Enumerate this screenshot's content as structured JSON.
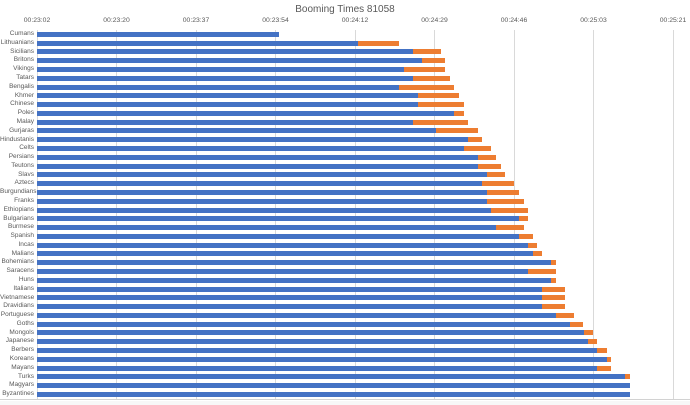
{
  "colors": {
    "bar_blue": "#4472C4",
    "bar_orange": "#ED7D31",
    "grid": "#D9D9D9",
    "text": "#595959",
    "edge": "#d2d2d2"
  },
  "chart_data": {
    "type": "bar",
    "orientation": "horizontal",
    "stacked": true,
    "grid": true,
    "legend": "none",
    "title": "Booming Times 81058",
    "xlabel": "",
    "ylabel": "",
    "x_axis": {
      "format": "h:mm:ss",
      "min_seconds": 1382.4,
      "max_seconds": 1520.64,
      "tick_seconds": [
        1382.4,
        1399.68,
        1416.96,
        1434.24,
        1451.52,
        1468.8,
        1486.08,
        1503.36,
        1520.64
      ],
      "tick_labels": [
        "00:23:02",
        "00:23:20",
        "00:23:37",
        "00:23:54",
        "00:24:12",
        "00:24:29",
        "00:24:46",
        "00:25:03",
        "00:25:21"
      ]
    },
    "series_note": "Each bar = blue segment ending at end1, orange segment ending at end2 (total). No legend shown in chart.",
    "rows": [
      {
        "label": "Cumans",
        "end1_s": 1435,
        "end2_s": 1435,
        "end1": "0:23:55",
        "end2": "0:23:55"
      },
      {
        "label": "Lithuanians",
        "end1_s": 1452,
        "end2_s": 1461,
        "end1": "0:24:12",
        "end2": "0:24:21"
      },
      {
        "label": "Sicilians",
        "end1_s": 1464,
        "end2_s": 1470,
        "end1": "0:24:24",
        "end2": "0:24:30"
      },
      {
        "label": "Britons",
        "end1_s": 1466,
        "end2_s": 1471,
        "end1": "0:24:26",
        "end2": "0:24:31"
      },
      {
        "label": "Vikings",
        "end1_s": 1462,
        "end2_s": 1471,
        "end1": "0:24:22",
        "end2": "0:24:31"
      },
      {
        "label": "Tatars",
        "end1_s": 1464,
        "end2_s": 1472,
        "end1": "0:24:24",
        "end2": "0:24:32"
      },
      {
        "label": "Bengalis",
        "end1_s": 1461,
        "end2_s": 1473,
        "end1": "0:24:21",
        "end2": "0:24:33"
      },
      {
        "label": "Khmer",
        "end1_s": 1465,
        "end2_s": 1474,
        "end1": "0:24:25",
        "end2": "0:24:34"
      },
      {
        "label": "Chinese",
        "end1_s": 1465,
        "end2_s": 1475,
        "end1": "0:24:25",
        "end2": "0:24:35"
      },
      {
        "label": "Poles",
        "end1_s": 1473,
        "end2_s": 1475,
        "end1": "0:24:33",
        "end2": "0:24:35"
      },
      {
        "label": "Malay",
        "end1_s": 1464,
        "end2_s": 1476,
        "end1": "0:24:24",
        "end2": "0:24:36"
      },
      {
        "label": "Gurjaras",
        "end1_s": 1469,
        "end2_s": 1478,
        "end1": "0:24:29",
        "end2": "0:24:38"
      },
      {
        "label": "Hindustanis",
        "end1_s": 1476,
        "end2_s": 1479,
        "end1": "0:24:36",
        "end2": "0:24:39"
      },
      {
        "label": "Celts",
        "end1_s": 1475,
        "end2_s": 1481,
        "end1": "0:24:35",
        "end2": "0:24:41"
      },
      {
        "label": "Persians",
        "end1_s": 1478,
        "end2_s": 1482,
        "end1": "0:24:38",
        "end2": "0:24:42"
      },
      {
        "label": "Teutons",
        "end1_s": 1478,
        "end2_s": 1483,
        "end1": "0:24:38",
        "end2": "0:24:43"
      },
      {
        "label": "Slavs",
        "end1_s": 1480,
        "end2_s": 1484,
        "end1": "0:24:40",
        "end2": "0:24:44"
      },
      {
        "label": "Aztecs",
        "end1_s": 1479,
        "end2_s": 1486,
        "end1": "0:24:39",
        "end2": "0:24:46"
      },
      {
        "label": "Burgundians",
        "end1_s": 1480,
        "end2_s": 1487,
        "end1": "0:24:40",
        "end2": "0:24:47"
      },
      {
        "label": "Franks",
        "end1_s": 1480,
        "end2_s": 1488,
        "end1": "0:24:40",
        "end2": "0:24:48"
      },
      {
        "label": "Ethiopians",
        "end1_s": 1481,
        "end2_s": 1489,
        "end1": "0:24:41",
        "end2": "0:24:49"
      },
      {
        "label": "Bulgarians",
        "end1_s": 1487,
        "end2_s": 1489,
        "end1": "0:24:47",
        "end2": "0:24:49"
      },
      {
        "label": "Burmese",
        "end1_s": 1482,
        "end2_s": 1488,
        "end1": "0:24:42",
        "end2": "0:24:48"
      },
      {
        "label": "Spanish",
        "end1_s": 1487,
        "end2_s": 1490,
        "end1": "0:24:47",
        "end2": "0:24:50"
      },
      {
        "label": "Incas",
        "end1_s": 1489,
        "end2_s": 1491,
        "end1": "0:24:49",
        "end2": "0:24:51"
      },
      {
        "label": "Malians",
        "end1_s": 1490,
        "end2_s": 1492,
        "end1": "0:24:50",
        "end2": "0:24:52"
      },
      {
        "label": "Bohemians",
        "end1_s": 1494,
        "end2_s": 1495,
        "end1": "0:24:54",
        "end2": "0:24:55"
      },
      {
        "label": "Saracens",
        "end1_s": 1489,
        "end2_s": 1495,
        "end1": "0:24:49",
        "end2": "0:24:55"
      },
      {
        "label": "Huns",
        "end1_s": 1494,
        "end2_s": 1495,
        "end1": "0:24:54",
        "end2": "0:24:55"
      },
      {
        "label": "Italians",
        "end1_s": 1492,
        "end2_s": 1497,
        "end1": "0:24:52",
        "end2": "0:24:57"
      },
      {
        "label": "Vietnamese",
        "end1_s": 1492,
        "end2_s": 1497,
        "end1": "0:24:52",
        "end2": "0:24:57"
      },
      {
        "label": "Dravidians",
        "end1_s": 1492,
        "end2_s": 1497,
        "end1": "0:24:52",
        "end2": "0:24:57"
      },
      {
        "label": "Portuguese",
        "end1_s": 1495,
        "end2_s": 1499,
        "end1": "0:24:55",
        "end2": "0:24:59"
      },
      {
        "label": "Goths",
        "end1_s": 1498,
        "end2_s": 1501,
        "end1": "0:24:58",
        "end2": "0:25:01"
      },
      {
        "label": "Mongols",
        "end1_s": 1501,
        "end2_s": 1503,
        "end1": "0:25:01",
        "end2": "0:25:03"
      },
      {
        "label": "Japanese",
        "end1_s": 1502,
        "end2_s": 1504,
        "end1": "0:25:02",
        "end2": "0:25:04"
      },
      {
        "label": "Berbers",
        "end1_s": 1504,
        "end2_s": 1506,
        "end1": "0:25:04",
        "end2": "0:25:06"
      },
      {
        "label": "Koreans",
        "end1_s": 1506,
        "end2_s": 1507,
        "end1": "0:25:06",
        "end2": "0:25:07"
      },
      {
        "label": "Mayans",
        "end1_s": 1504,
        "end2_s": 1507,
        "end1": "0:25:04",
        "end2": "0:25:07"
      },
      {
        "label": "Turks",
        "end1_s": 1510,
        "end2_s": 1511,
        "end1": "0:25:10",
        "end2": "0:25:11"
      },
      {
        "label": "Magyars",
        "end1_s": 1511,
        "end2_s": 1511,
        "end1": "0:25:11",
        "end2": "0:25:11"
      },
      {
        "label": "Byzantines",
        "end1_s": 1511,
        "end2_s": 1511,
        "end1": "0:25:11",
        "end2": "0:25:11"
      }
    ]
  }
}
